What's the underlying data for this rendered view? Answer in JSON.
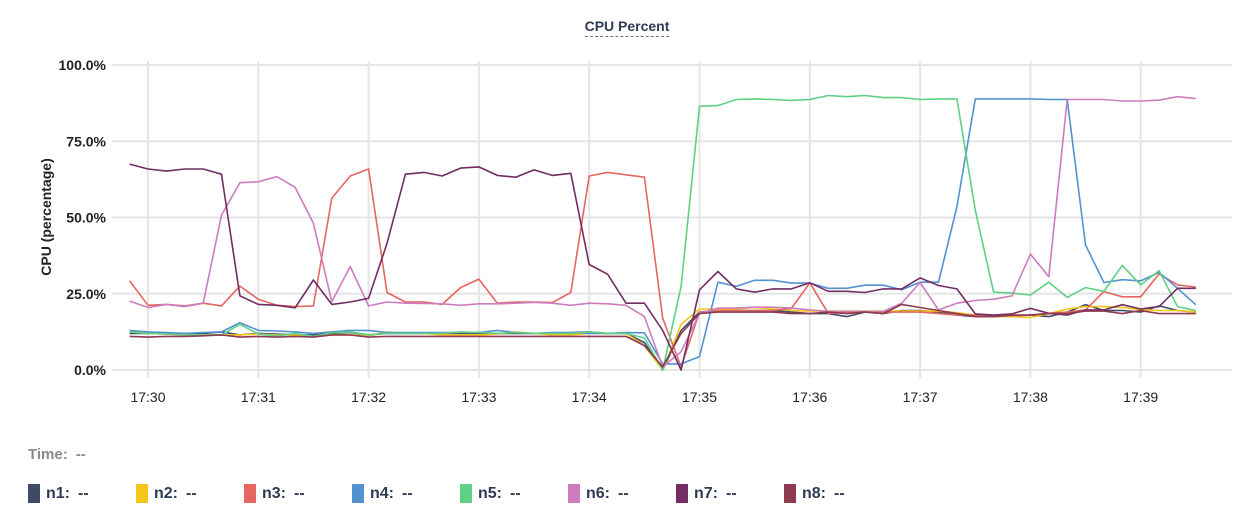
{
  "chart_data": {
    "type": "line",
    "title": "CPU Percent",
    "ylabel": "CPU (percentage)",
    "xlabel": "",
    "ylim": [
      0,
      100
    ],
    "yticks": [
      "0.0%",
      "25.0%",
      "50.0%",
      "75.0%",
      "100.0%"
    ],
    "ytick_values": [
      0,
      25,
      50,
      75,
      100
    ],
    "xticks": [
      "17:30",
      "17:31",
      "17:32",
      "17:33",
      "17:34",
      "17:35",
      "17:36",
      "17:37",
      "17:38",
      "17:39"
    ],
    "x_start": "17:29:50",
    "x_interval_seconds": 10,
    "grid": true,
    "series": [
      {
        "name": "n1",
        "color": "#3f4a68",
        "values": [
          12,
          12,
          11.8,
          12,
          12,
          12.5,
          11.5,
          12,
          11.8,
          11.5,
          11.5,
          12,
          12.3,
          11.5,
          12,
          12,
          12,
          12,
          12,
          12,
          12,
          12,
          12,
          12,
          12.3,
          12.5,
          12,
          12,
          9,
          0,
          13,
          19,
          19.5,
          19.5,
          19.5,
          19.5,
          19,
          18.5,
          18.5,
          17.5,
          19,
          18.5,
          19.5,
          19.5,
          19,
          18,
          17.5,
          17.5,
          17.8,
          18,
          17.5,
          19,
          21.4,
          19.5,
          19.5,
          19,
          21,
          19.5,
          19
        ]
      },
      {
        "name": "n2",
        "color": "#f5c518",
        "values": [
          12.5,
          12,
          11.8,
          11.5,
          11.5,
          11.5,
          11.5,
          11.8,
          11.5,
          11.5,
          11,
          11.5,
          11.5,
          11.2,
          12.5,
          12,
          12,
          11.5,
          11.5,
          11.5,
          11.8,
          12.5,
          12,
          11.5,
          11.5,
          12,
          12,
          12,
          8,
          0,
          15,
          20,
          20,
          20,
          20.5,
          20,
          19.5,
          19.3,
          19.3,
          19.3,
          19.3,
          19.3,
          19.3,
          19.3,
          19.3,
          18.8,
          18,
          17.5,
          17.5,
          17.2,
          18.5,
          20,
          20.8,
          20.8,
          20.5,
          19.8,
          19.5,
          19.5,
          19
        ]
      },
      {
        "name": "n3",
        "color": "#e5675f",
        "values": [
          29.2,
          21.2,
          21.5,
          21,
          21.9,
          21,
          27.5,
          23.2,
          21.2,
          20.8,
          21,
          56.3,
          63.6,
          65.9,
          25.4,
          22.3,
          22.3,
          21.5,
          27,
          29.8,
          21.9,
          22.3,
          22.3,
          22.1,
          25.4,
          63.6,
          64.8,
          64,
          63.2,
          17,
          1,
          19,
          19.5,
          19.5,
          19.5,
          19.5,
          20.2,
          28.6,
          18.6,
          18.8,
          19,
          19,
          19,
          19,
          18.5,
          18,
          18,
          17.5,
          17.8,
          18,
          18.6,
          19,
          19.7,
          25.7,
          24,
          24,
          31.5,
          27.9,
          27.2
        ]
      },
      {
        "name": "n4",
        "color": "#5292d0",
        "values": [
          13,
          12.5,
          12.3,
          12,
          12.3,
          12.5,
          15.5,
          13,
          12.8,
          12.5,
          12,
          12.5,
          13,
          13,
          12.3,
          12.3,
          12.3,
          12.3,
          12.3,
          12.3,
          13,
          12.3,
          12,
          12.3,
          12.3,
          12,
          12,
          12.3,
          12.2,
          2,
          2,
          4.4,
          28.8,
          27.4,
          29.4,
          29.4,
          28.5,
          28.5,
          26.8,
          26.8,
          27.8,
          27.8,
          26.3,
          28.8,
          28.8,
          53.5,
          88.9,
          88.9,
          88.9,
          88.9,
          88.7,
          88.7,
          41,
          28.7,
          29.6,
          29.2,
          32,
          26.8,
          21.4
        ]
      },
      {
        "name": "n5",
        "color": "#5fd085",
        "values": [
          12.5,
          12,
          11.8,
          11.5,
          11.5,
          11.5,
          15,
          11.8,
          11.2,
          12,
          11,
          12.2,
          12.5,
          11.5,
          12,
          12,
          12,
          12,
          12.5,
          12.3,
          12,
          12.3,
          12,
          12,
          12,
          12.5,
          12,
          12,
          10.5,
          0,
          27.4,
          86.5,
          86.7,
          88.7,
          88.9,
          88.7,
          88.4,
          88.7,
          90,
          89.6,
          90,
          89.3,
          89.3,
          88.7,
          88.9,
          88.9,
          52.4,
          25.5,
          25.2,
          24.6,
          28.8,
          23.8,
          27,
          25.8,
          34.3,
          27.9,
          32.6,
          20.8,
          19.5
        ]
      },
      {
        "name": "n6",
        "color": "#cd7dbf",
        "values": [
          22.6,
          20.5,
          21.5,
          20.8,
          21.9,
          50.8,
          61.4,
          61.7,
          63.4,
          59.9,
          48.1,
          22.4,
          33.9,
          21,
          22.3,
          21.9,
          21.8,
          21.7,
          21.2,
          21.7,
          21.7,
          21.9,
          22.2,
          21.9,
          21.2,
          21.9,
          21.7,
          21.2,
          17.5,
          1,
          6,
          18.6,
          20.3,
          20.3,
          20.6,
          20.6,
          20.3,
          19.7,
          19.2,
          19.2,
          19.2,
          19.2,
          21.9,
          28.7,
          19.7,
          21.9,
          22.8,
          23.2,
          24.3,
          38,
          30.6,
          88.7,
          88.7,
          88.7,
          88.2,
          88.2,
          88.5,
          89.6,
          89
        ]
      },
      {
        "name": "n7",
        "color": "#722d63",
        "values": [
          67.5,
          65.9,
          65.2,
          65.9,
          65.9,
          64.2,
          24.3,
          21.5,
          21.2,
          20.4,
          29.5,
          21.5,
          22.3,
          23.5,
          41.5,
          64.2,
          64.8,
          63.6,
          66.2,
          66.6,
          63.8,
          63.2,
          65.6,
          63.8,
          64.5,
          34.6,
          31.4,
          21.9,
          21.9,
          13,
          0,
          26.3,
          32.3,
          26.6,
          25.5,
          26.6,
          26.6,
          28.6,
          25.8,
          25.8,
          25.4,
          26.6,
          26.6,
          30.2,
          27.7,
          26.6,
          18.4,
          18,
          18.4,
          20.2,
          18.6,
          18,
          19.7,
          19.7,
          21.4,
          20,
          20.8,
          26.8,
          26.8
        ]
      },
      {
        "name": "n8",
        "color": "#8e3b4f",
        "values": [
          11,
          10.8,
          11,
          11,
          11.2,
          11.5,
          10.8,
          11,
          10.8,
          11,
          10.8,
          11.5,
          11.5,
          10.8,
          11,
          11,
          11,
          11,
          11,
          11,
          11,
          11,
          11,
          11,
          11,
          11,
          11,
          11,
          8,
          1,
          12,
          18.5,
          19,
          19,
          19,
          19,
          18.5,
          18.5,
          19,
          18.5,
          19,
          18.5,
          21.5,
          20.5,
          19.5,
          18.5,
          17.5,
          17.5,
          18,
          18,
          18.5,
          18.5,
          19.3,
          19.3,
          18.5,
          19.5,
          18.5,
          18.5,
          18.5
        ]
      }
    ]
  },
  "readout": {
    "time_label": "Time:",
    "time_value": "--",
    "value_placeholder": "--"
  },
  "legend": [
    {
      "label": "n1:",
      "value": "--"
    },
    {
      "label": "n2:",
      "value": "--"
    },
    {
      "label": "n3:",
      "value": "--"
    },
    {
      "label": "n4:",
      "value": "--"
    },
    {
      "label": "n5:",
      "value": "--"
    },
    {
      "label": "n6:",
      "value": "--"
    },
    {
      "label": "n7:",
      "value": "--"
    },
    {
      "label": "n8:",
      "value": "--"
    }
  ]
}
